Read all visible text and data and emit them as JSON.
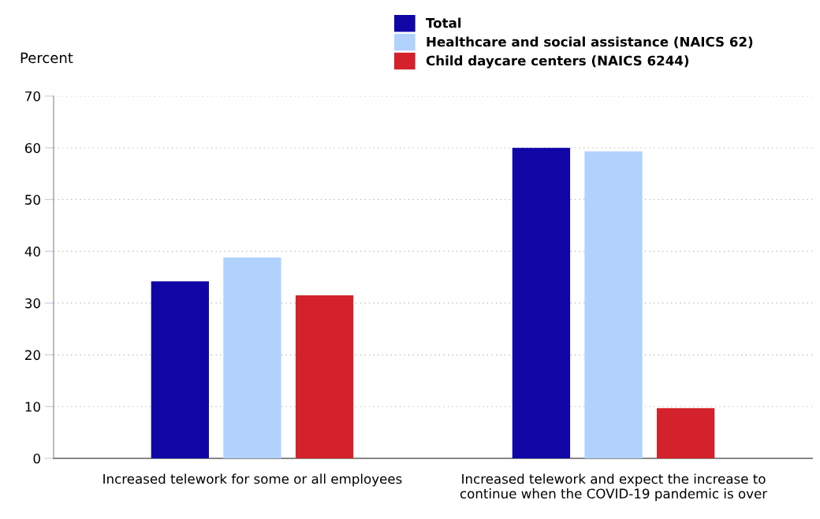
{
  "chart_data": {
    "type": "bar",
    "ylabel": "Percent",
    "categories": [
      "Increased telework for some or all employees",
      "Increased telework and expect the increase to\ncontinue when the COVID-19 pandemic is over"
    ],
    "series": [
      {
        "name": "Total",
        "color": "#1005a5",
        "values": [
          34.2,
          60.0
        ]
      },
      {
        "name": "Healthcare and social assistance (NAICS 62)",
        "color": "#b0d2fd",
        "values": [
          38.8,
          59.3
        ]
      },
      {
        "name": "Child daycare centers (NAICS 6244)",
        "color": "#d3222b",
        "values": [
          31.5,
          9.7
        ]
      }
    ],
    "ylim": [
      0,
      70
    ],
    "yticks": [
      0,
      10,
      20,
      30,
      40,
      50,
      60,
      70
    ],
    "grid": "y",
    "legend": "top"
  }
}
